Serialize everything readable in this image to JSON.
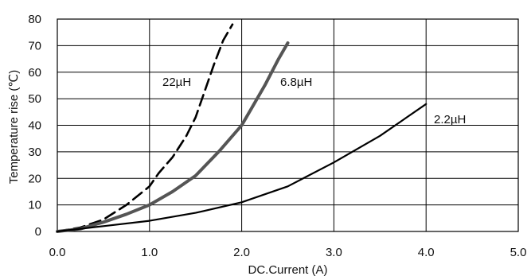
{
  "chart_data": {
    "type": "line",
    "title": "",
    "xlabel": "DC.Current (A)",
    "ylabel": "Temperature rise (℃)",
    "xlim": [
      0,
      5
    ],
    "ylim": [
      0,
      80
    ],
    "x_ticks": [
      0.0,
      1.0,
      2.0,
      3.0,
      4.0,
      5.0
    ],
    "x_tick_labels": [
      "0.0",
      "1.0",
      "2.0",
      "3.0",
      "4.0",
      "5.0"
    ],
    "y_ticks": [
      0,
      10,
      20,
      30,
      40,
      50,
      60,
      70,
      80
    ],
    "y_tick_labels": [
      "0",
      "10",
      "20",
      "30",
      "40",
      "50",
      "60",
      "70",
      "80"
    ],
    "grid": true,
    "legend": "inline labels",
    "series": [
      {
        "name": "22µH",
        "style": "dashed",
        "color": "#000000",
        "x": [
          0.0,
          0.25,
          0.5,
          0.75,
          1.0,
          1.1,
          1.25,
          1.4,
          1.5,
          1.6,
          1.7,
          1.8,
          1.9
        ],
        "y": [
          0,
          1.5,
          4.5,
          10,
          17,
          22,
          28,
          36,
          43,
          53,
          63,
          72,
          78
        ]
      },
      {
        "name": "6.8µH",
        "style": "solid-thick",
        "color": "#555555",
        "x": [
          0.0,
          0.25,
          0.5,
          0.75,
          1.0,
          1.25,
          1.5,
          1.75,
          2.0,
          2.1,
          2.25,
          2.4,
          2.5
        ],
        "y": [
          0,
          1,
          3.5,
          6.5,
          10,
          15,
          21,
          30,
          40,
          46,
          55,
          65,
          71
        ]
      },
      {
        "name": "2.2µH",
        "style": "solid",
        "color": "#000000",
        "x": [
          0.0,
          0.5,
          1.0,
          1.5,
          2.0,
          2.5,
          3.0,
          3.5,
          4.0
        ],
        "y": [
          0,
          2,
          4,
          7,
          11,
          17,
          26,
          36,
          48
        ]
      }
    ]
  }
}
